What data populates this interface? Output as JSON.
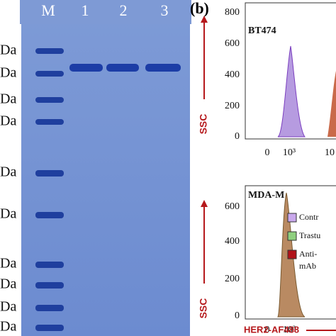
{
  "panel_b": {
    "label": "(b)"
  },
  "gel": {
    "lanes": [
      "M",
      "1",
      "2",
      "3"
    ],
    "markers": [
      "Da",
      "Da",
      "Da",
      "Da",
      "Da",
      "Da",
      "Da",
      "Da",
      "Da",
      "Da"
    ]
  },
  "plots": [
    {
      "title": "BT474",
      "y_label": "SSC",
      "yticks": [
        "800",
        "600",
        "400",
        "200",
        "0"
      ],
      "xticks": [
        "0",
        "10³",
        "10"
      ]
    },
    {
      "title": "MDA-M",
      "y_label": "SSC",
      "yticks": [
        "600",
        "400",
        "200",
        "0"
      ],
      "xticks": [
        "0",
        "10³"
      ],
      "legend": [
        "Contr",
        "Trastu",
        "Anti-",
        "mAb"
      ],
      "x_label": "HER2-AF488"
    }
  ]
}
